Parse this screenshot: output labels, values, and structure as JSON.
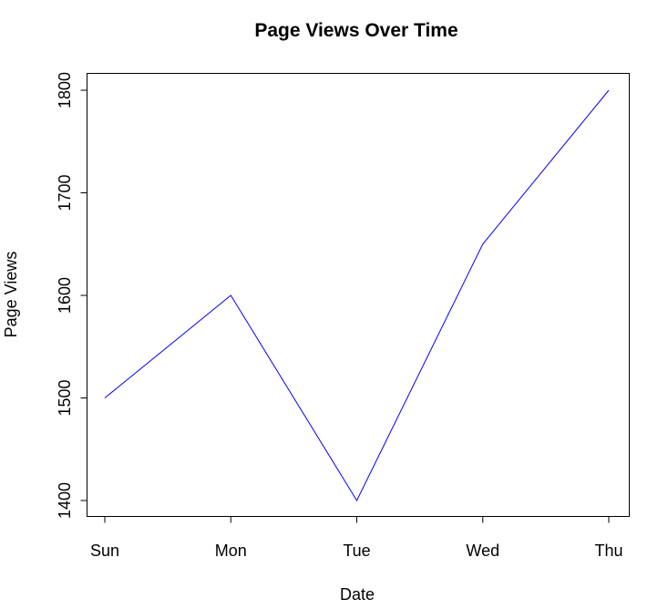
{
  "chart_data": {
    "type": "line",
    "title": "Page Views Over Time",
    "xlabel": "Date",
    "ylabel": "Page Views",
    "categories": [
      "Sun",
      "Mon",
      "Tue",
      "Wed",
      "Thu"
    ],
    "series": [
      {
        "name": "Page Views",
        "values": [
          1500,
          1600,
          1400,
          1650,
          1800
        ],
        "color": "#0000ff"
      }
    ],
    "yticks": [
      1400,
      1500,
      1600,
      1700,
      1800
    ],
    "ylim": [
      1384,
      1816
    ],
    "grid": false,
    "legend": "none"
  }
}
